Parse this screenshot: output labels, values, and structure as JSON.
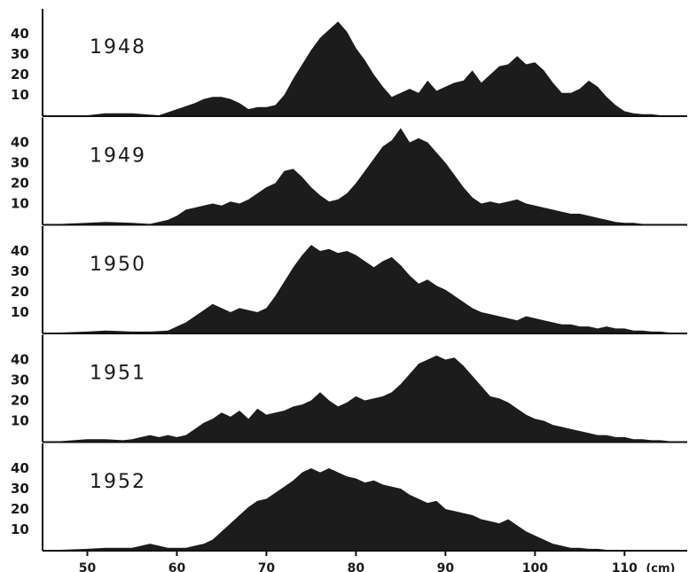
{
  "chart_data": {
    "type": "area",
    "xlim": [
      45,
      117
    ],
    "ylim": [
      0,
      48
    ],
    "x_ticks": [
      50,
      60,
      70,
      80,
      90,
      100,
      110
    ],
    "x_tick_labels": [
      "50",
      "60",
      "70",
      "80",
      "90",
      "100",
      "110"
    ],
    "x_unit_label": "(cm)",
    "y_ticks": [
      10,
      20,
      30,
      40
    ],
    "y_tick_labels": [
      "10",
      "20",
      "30",
      "40"
    ],
    "fill_color": "#1c1c1c",
    "panels": [
      {
        "label": "1948",
        "x": [
          47,
          50,
          52,
          55,
          58,
          60,
          62,
          63,
          64,
          65,
          66,
          67,
          68,
          69,
          70,
          71,
          72,
          73,
          74,
          75,
          76,
          77,
          78,
          79,
          80,
          81,
          82,
          83,
          84,
          85,
          86,
          87,
          88,
          89,
          90,
          91,
          92,
          93,
          94,
          95,
          96,
          97,
          98,
          99,
          100,
          101,
          102,
          103,
          104,
          105,
          106,
          107,
          108,
          109,
          110,
          111,
          112,
          113,
          114,
          115,
          116
        ],
        "values": [
          0,
          0,
          1,
          1,
          0,
          3,
          6,
          8,
          9,
          9,
          8,
          6,
          3,
          4,
          4,
          5,
          10,
          18,
          25,
          32,
          38,
          42,
          46,
          41,
          33,
          27,
          20,
          14,
          9,
          11,
          13,
          11,
          17,
          12,
          14,
          16,
          17,
          22,
          16,
          20,
          24,
          25,
          29,
          25,
          26,
          22,
          16,
          11,
          11,
          13,
          17,
          14,
          9,
          5,
          2,
          1,
          0.5,
          0.5,
          0,
          0,
          0
        ]
      },
      {
        "label": "1949",
        "x": [
          47,
          50,
          52,
          55,
          57,
          59,
          60,
          61,
          62,
          63,
          64,
          65,
          66,
          67,
          68,
          69,
          70,
          71,
          72,
          73,
          74,
          75,
          76,
          77,
          78,
          79,
          80,
          81,
          82,
          83,
          84,
          85,
          86,
          87,
          88,
          89,
          90,
          91,
          92,
          93,
          94,
          95,
          96,
          97,
          98,
          99,
          100,
          101,
          102,
          103,
          104,
          105,
          106,
          107,
          108,
          109,
          110,
          111,
          112,
          113,
          114,
          115,
          116
        ],
        "values": [
          0,
          0.5,
          1,
          0.5,
          0,
          2,
          4,
          7,
          8,
          9,
          10,
          9,
          11,
          10,
          12,
          15,
          18,
          20,
          26,
          27,
          23,
          18,
          14,
          11,
          12,
          15,
          20,
          26,
          32,
          38,
          41,
          47,
          40,
          42,
          40,
          35,
          30,
          24,
          18,
          13,
          10,
          11,
          10,
          11,
          12,
          10,
          9,
          8,
          7,
          6,
          5,
          5,
          4,
          3,
          2,
          1,
          0.5,
          0.5,
          0,
          0,
          0,
          0,
          0
        ]
      },
      {
        "label": "1950",
        "x": [
          47,
          50,
          52,
          55,
          57,
          59,
          60,
          61,
          62,
          63,
          64,
          65,
          66,
          67,
          68,
          69,
          70,
          71,
          72,
          73,
          74,
          75,
          76,
          77,
          78,
          79,
          80,
          81,
          82,
          83,
          84,
          85,
          86,
          87,
          88,
          89,
          90,
          91,
          92,
          93,
          94,
          95,
          96,
          97,
          98,
          99,
          100,
          101,
          102,
          103,
          104,
          105,
          106,
          107,
          108,
          109,
          110,
          111,
          112,
          113,
          114,
          115,
          116
        ],
        "values": [
          0,
          0.5,
          1,
          0.5,
          0.5,
          1,
          3,
          5,
          8,
          11,
          14,
          12,
          10,
          12,
          11,
          10,
          12,
          18,
          25,
          32,
          38,
          43,
          40,
          41,
          39,
          40,
          38,
          35,
          32,
          35,
          37,
          33,
          28,
          24,
          26,
          23,
          21,
          18,
          15,
          12,
          10,
          9,
          8,
          7,
          6,
          8,
          7,
          6,
          5,
          4,
          4,
          3,
          3,
          2,
          3,
          2,
          2,
          1,
          1,
          0.5,
          0.5,
          0,
          0
        ]
      },
      {
        "label": "1951",
        "x": [
          47,
          50,
          52,
          54,
          55,
          56,
          57,
          58,
          59,
          60,
          61,
          62,
          63,
          64,
          65,
          66,
          67,
          68,
          69,
          70,
          71,
          72,
          73,
          74,
          75,
          76,
          77,
          78,
          79,
          80,
          81,
          82,
          83,
          84,
          85,
          86,
          87,
          88,
          89,
          90,
          91,
          92,
          93,
          94,
          95,
          96,
          97,
          98,
          99,
          100,
          101,
          102,
          103,
          104,
          105,
          106,
          107,
          108,
          109,
          110,
          111,
          112,
          113,
          114,
          115,
          116
        ],
        "values": [
          0,
          1,
          1,
          0.5,
          1,
          2,
          3,
          2,
          3,
          2,
          3,
          6,
          9,
          11,
          14,
          12,
          15,
          11,
          16,
          13,
          14,
          15,
          17,
          18,
          20,
          24,
          20,
          17,
          19,
          22,
          20,
          21,
          22,
          24,
          28,
          33,
          38,
          40,
          42,
          40,
          41,
          37,
          32,
          27,
          22,
          21,
          19,
          16,
          13,
          11,
          10,
          8,
          7,
          6,
          5,
          4,
          3,
          3,
          2,
          2,
          1,
          1,
          0.5,
          0.5,
          0,
          0
        ]
      },
      {
        "label": "1952",
        "x": [
          47,
          50,
          52,
          54,
          55,
          56,
          57,
          58,
          59,
          60,
          61,
          62,
          63,
          64,
          65,
          66,
          67,
          68,
          69,
          70,
          71,
          72,
          73,
          74,
          75,
          76,
          77,
          78,
          79,
          80,
          81,
          82,
          83,
          84,
          85,
          86,
          87,
          88,
          89,
          90,
          91,
          92,
          93,
          94,
          95,
          96,
          97,
          98,
          99,
          100,
          101,
          102,
          103,
          104,
          105,
          106,
          107,
          108,
          109,
          110,
          111,
          112,
          113,
          114,
          115,
          116
        ],
        "values": [
          0,
          0.5,
          1,
          1,
          1,
          2,
          3,
          2,
          1,
          1,
          1,
          2,
          3,
          5,
          9,
          13,
          17,
          21,
          24,
          25,
          28,
          31,
          34,
          38,
          40,
          38,
          40,
          38,
          36,
          35,
          33,
          34,
          32,
          31,
          30,
          27,
          25,
          23,
          24,
          20,
          19,
          18,
          17,
          15,
          14,
          13,
          15,
          12,
          9,
          7,
          5,
          3,
          2,
          1,
          1,
          0.5,
          0.5,
          0,
          0,
          0,
          0,
          0,
          0,
          0,
          0,
          0
        ]
      }
    ]
  }
}
